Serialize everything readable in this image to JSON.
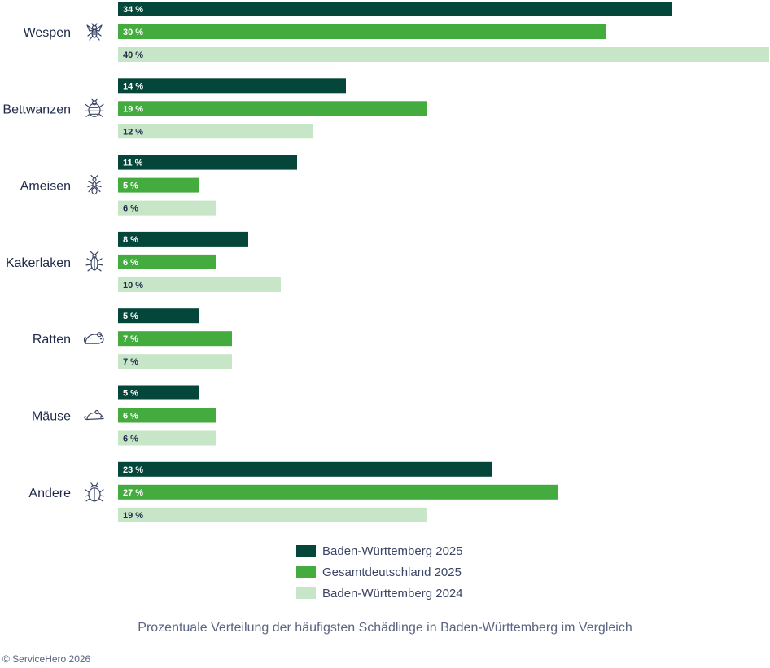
{
  "chart_data": {
    "type": "bar",
    "orientation": "horizontal",
    "categories": [
      "Wespen",
      "Bettwanzen",
      "Ameisen",
      "Kakerlaken",
      "Ratten",
      "Mäuse",
      "Andere"
    ],
    "icons": [
      "wasp-icon",
      "bedbug-icon",
      "ant-icon",
      "cockroach-icon",
      "rat-icon",
      "mouse-icon",
      "beetle-icon"
    ],
    "series": [
      {
        "name": "Baden-Württemberg 2025",
        "color": "#04473a",
        "labels": [
          "34 %",
          "14 %",
          "11 %",
          "8 %",
          "5 %",
          "5 %",
          "23 %"
        ],
        "values": [
          34,
          14,
          11,
          8,
          5,
          5,
          23
        ]
      },
      {
        "name": "Gesamtdeutschland 2025",
        "color": "#44ac3e",
        "labels": [
          "30 %",
          "19 %",
          "5 %",
          "6 %",
          "7 %",
          "6 %",
          "27 %"
        ],
        "values": [
          30,
          19,
          5,
          6,
          7,
          6,
          27
        ]
      },
      {
        "name": "Baden-Württemberg 2024",
        "color": "#c6e6c7",
        "labels": [
          "40 %",
          "12 %",
          "6 %",
          "10 %",
          "7 %",
          "6 %",
          "19 %"
        ],
        "values": [
          40,
          12,
          6,
          10,
          7,
          6,
          19
        ]
      }
    ],
    "xlim": [
      0,
      40
    ],
    "legend_position": "bottom-center",
    "title": ""
  },
  "caption": "Prozentuale Verteilung der häufigsten Schädlinge in Baden-Württemberg im Vergleich",
  "copyright": "© ServiceHero 2026"
}
